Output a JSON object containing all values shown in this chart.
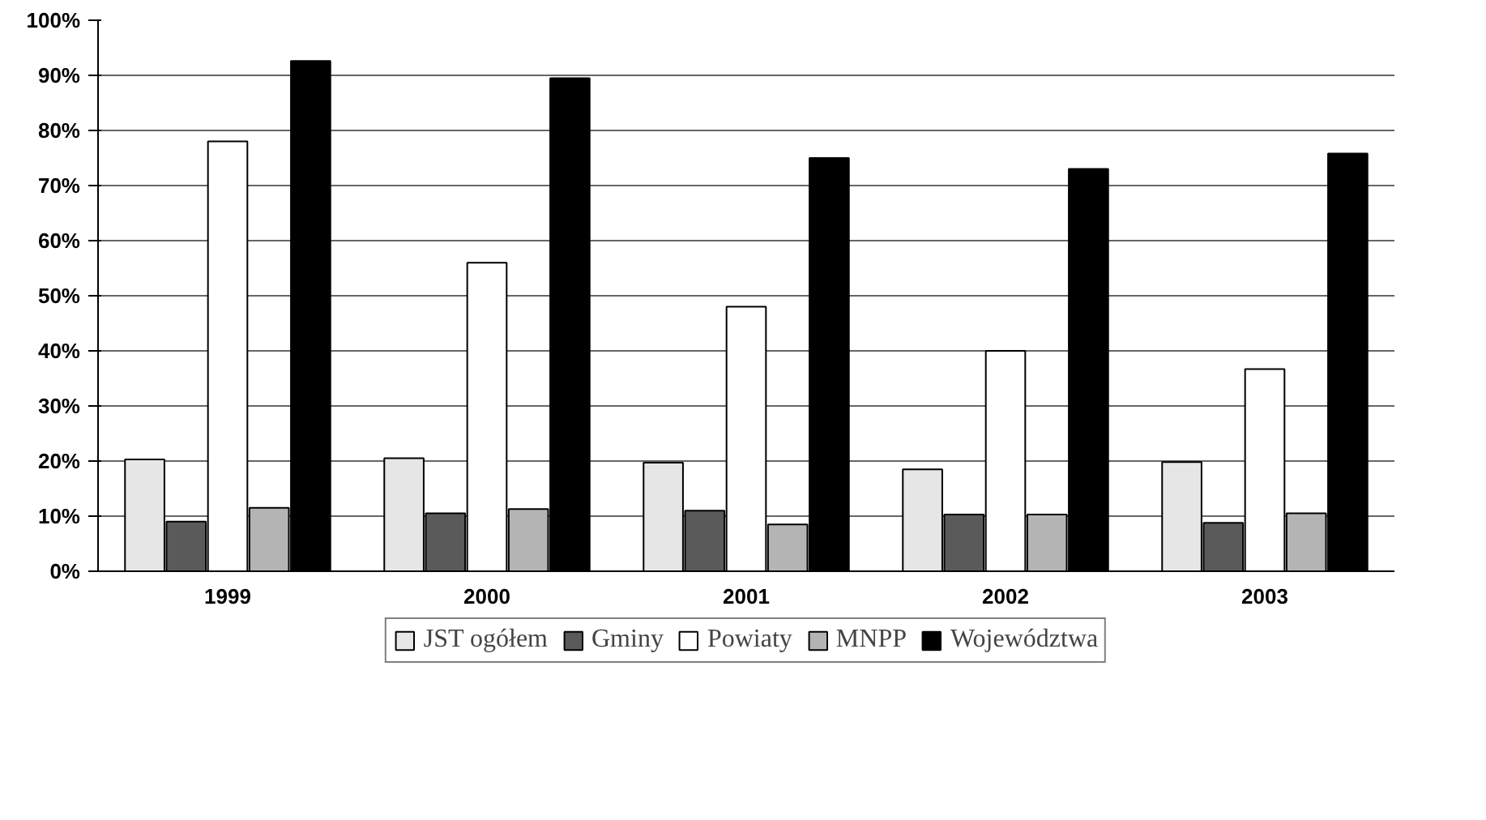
{
  "chart_data": {
    "type": "bar",
    "categories": [
      "1999",
      "2000",
      "2001",
      "2002",
      "2003"
    ],
    "series": [
      {
        "name": "JST ogółem",
        "color": "#e6e6e6",
        "values": [
          20.3,
          20.5,
          19.7,
          18.5,
          19.8
        ]
      },
      {
        "name": "Gminy",
        "color": "#5a5a5a",
        "values": [
          9,
          10.5,
          11,
          10.3,
          8.8
        ]
      },
      {
        "name": "Powiaty",
        "color": "#ffffff",
        "values": [
          78,
          56,
          48,
          40,
          36.7
        ]
      },
      {
        "name": "MNPP",
        "color": "#b4b4b4",
        "values": [
          11.5,
          11.3,
          8.5,
          10.3,
          10.5
        ]
      },
      {
        "name": "Województwa",
        "color": "#000000",
        "values": [
          92.6,
          89.5,
          75,
          73,
          75.8
        ]
      }
    ],
    "ylim": [
      0,
      100
    ],
    "yticks": [
      {
        "value": 0,
        "label": "0%"
      },
      {
        "value": 10,
        "label": "10%"
      },
      {
        "value": 20,
        "label": "20%"
      },
      {
        "value": 30,
        "label": "30%"
      },
      {
        "value": 40,
        "label": "40%"
      },
      {
        "value": 50,
        "label": "50%"
      },
      {
        "value": 60,
        "label": "60%"
      },
      {
        "value": 70,
        "label": "70%"
      },
      {
        "value": 80,
        "label": "80%"
      },
      {
        "value": 90,
        "label": "90%"
      },
      {
        "value": 100,
        "label": "100%"
      }
    ],
    "grid": "y",
    "legend": "bottom"
  }
}
